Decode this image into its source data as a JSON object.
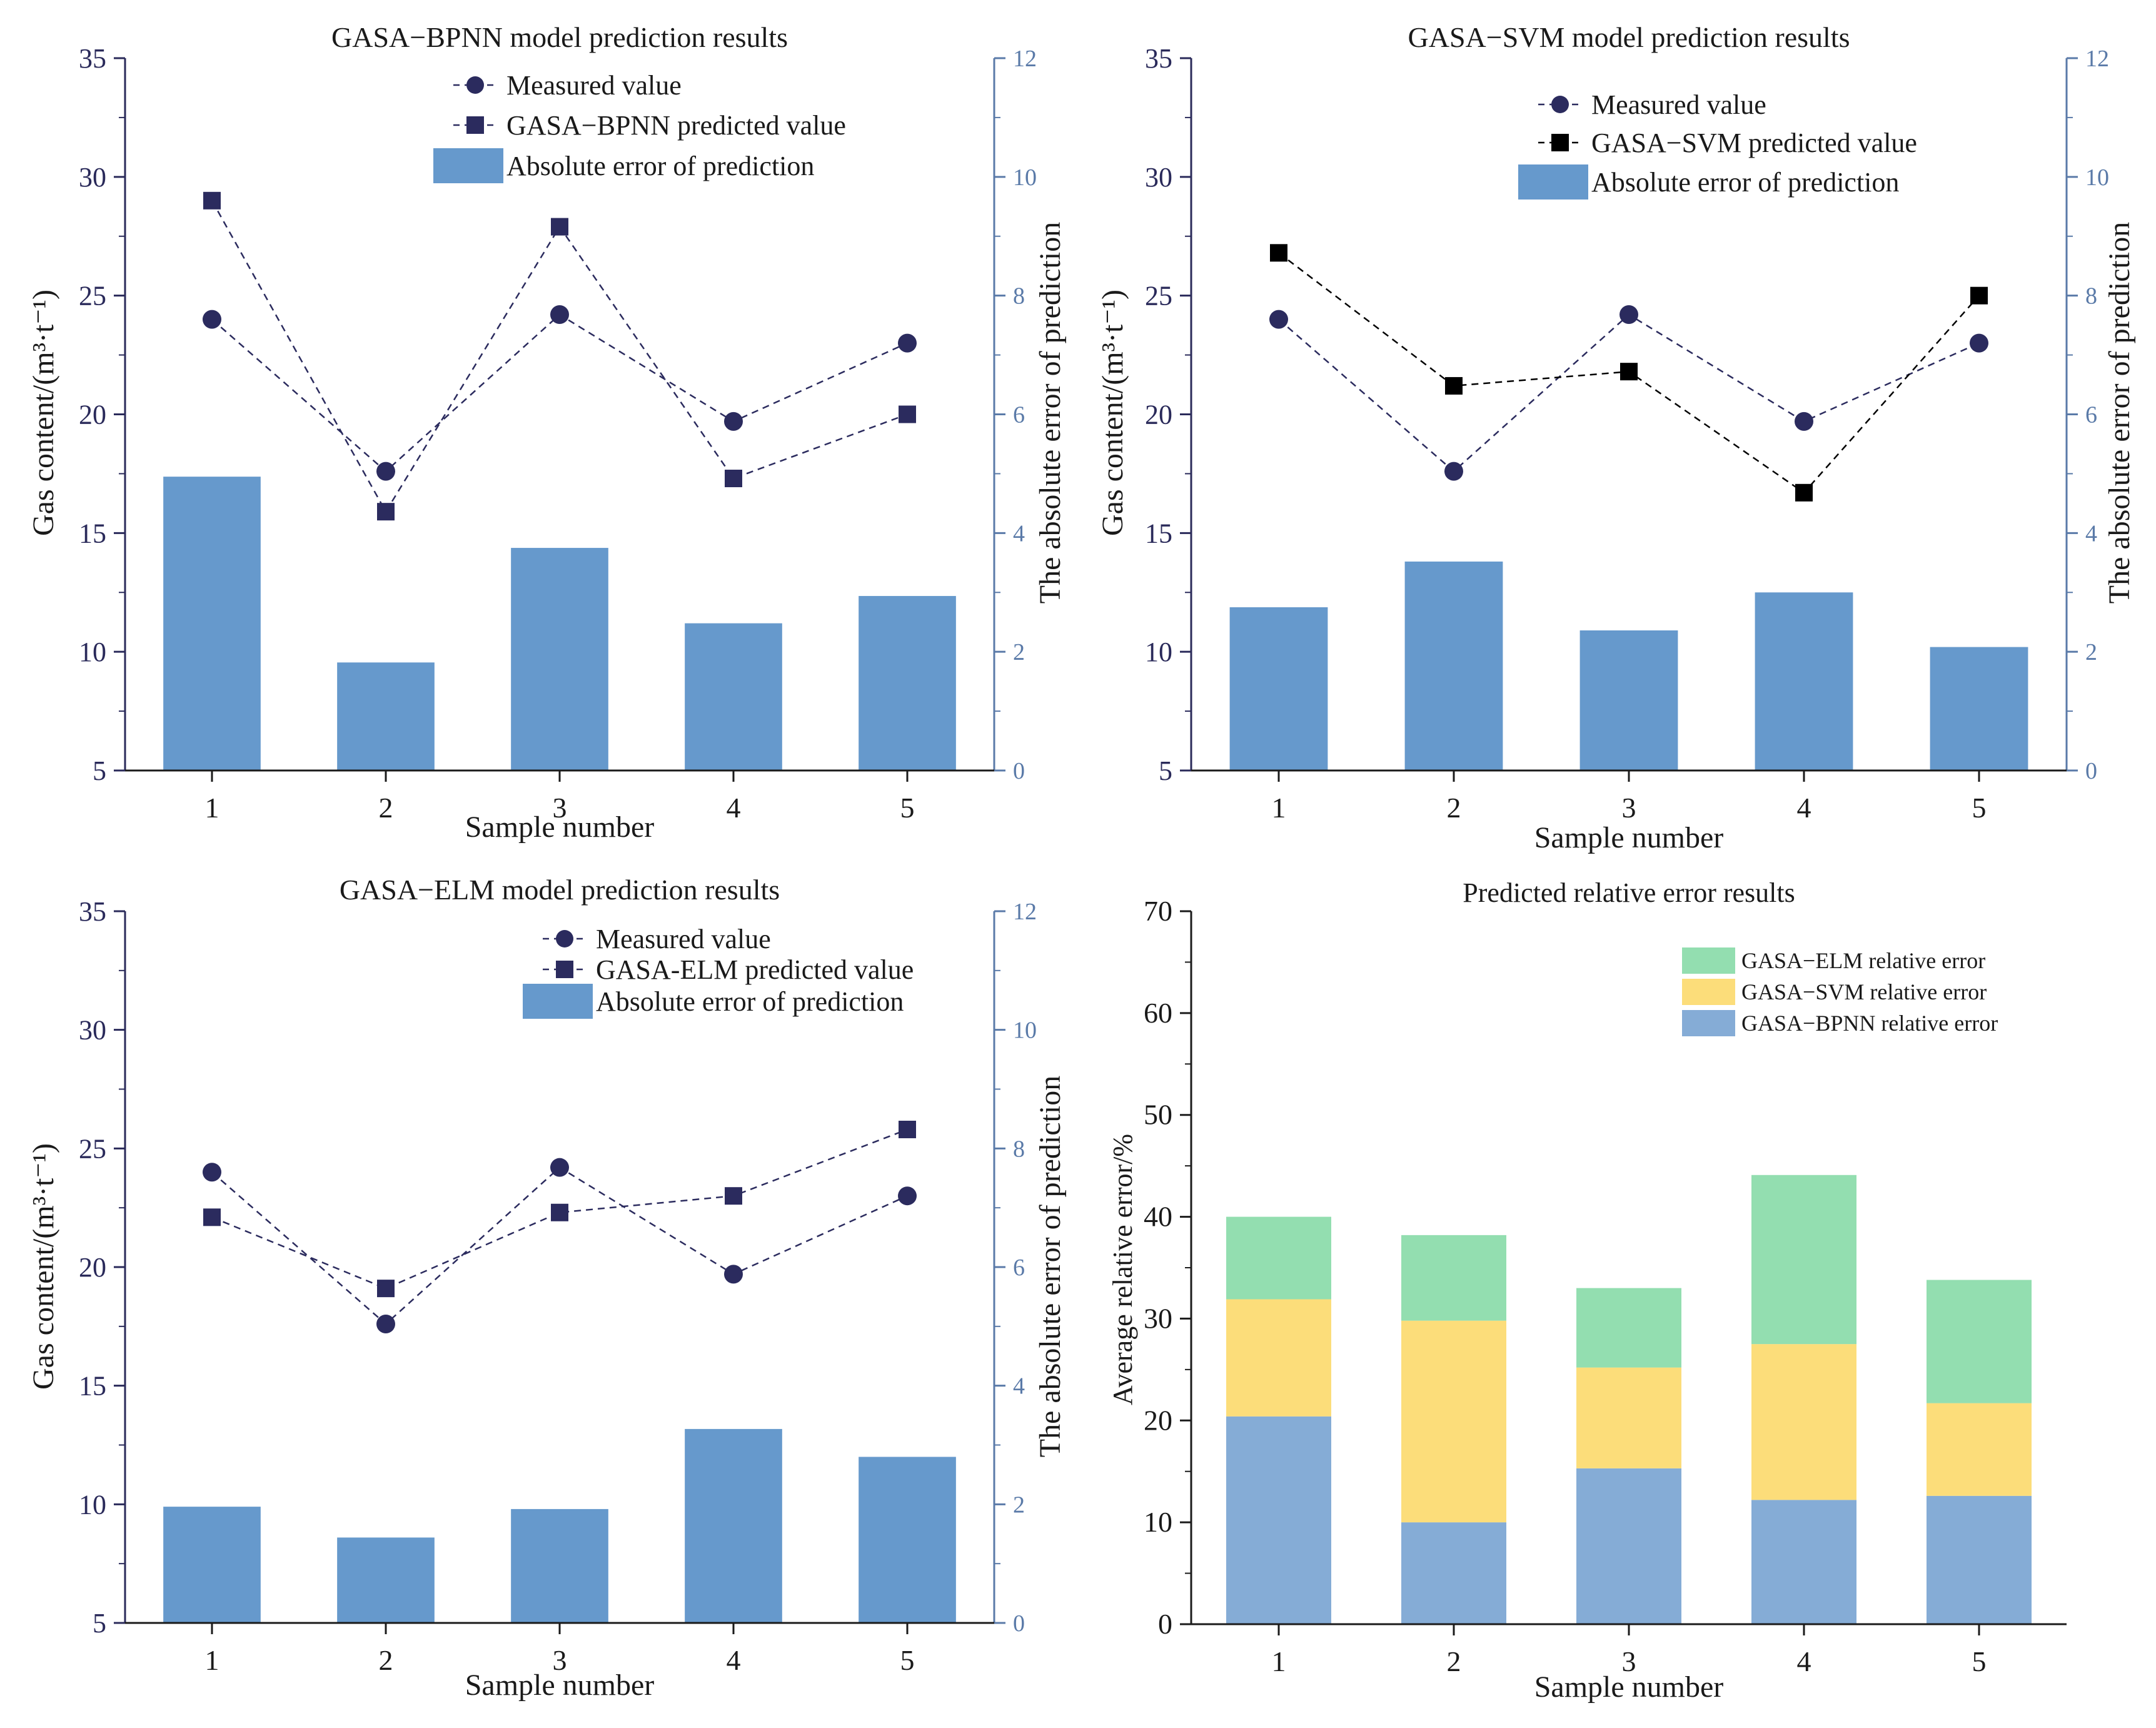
{
  "colors": {
    "bar": "#6699cc",
    "measured": "#2b2b5e",
    "bpnn_pred": "#2b2b5e",
    "svm_pred": "#000000",
    "elm_pred": "#2b2b5e",
    "stack_bpnn": "#85acd6",
    "stack_svm": "#fcdd7a",
    "stack_elm": "#93deb0",
    "axis_left": "#2a2a5a",
    "axis_right": "#5a7aa8"
  },
  "chart_data": [
    {
      "id": "bpnn",
      "type": "bar+line",
      "title": "GASA−BPNN model prediction results",
      "xlabel": "Sample number",
      "ylabel": "Gas content/(m³·t⁻¹)",
      "ylabel2": "The absolute error of prediction",
      "categories": [
        "1",
        "2",
        "3",
        "4",
        "5"
      ],
      "ylim": [
        5,
        35
      ],
      "yticks": [
        "5",
        "10",
        "15",
        "20",
        "25",
        "30",
        "35"
      ],
      "y2lim": [
        0,
        12
      ],
      "y2ticks": [
        "0",
        "2",
        "4",
        "6",
        "8",
        "10",
        "12"
      ],
      "series": [
        {
          "name": "Measured value",
          "kind": "line",
          "marker": "circle",
          "axis": "left",
          "values": [
            24.0,
            17.6,
            24.2,
            19.7,
            23.0
          ]
        },
        {
          "name": "GASA−BPNN predicted value",
          "kind": "line",
          "marker": "square",
          "axis": "left",
          "values": [
            29.0,
            15.9,
            27.9,
            17.3,
            20.0
          ]
        },
        {
          "name": "Absolute error of prediction",
          "kind": "bar",
          "axis": "right",
          "values": [
            4.95,
            1.82,
            3.75,
            2.48,
            2.94
          ]
        }
      ],
      "legend": "top-right"
    },
    {
      "id": "svm",
      "type": "bar+line",
      "title": "GASA−SVM model prediction results",
      "xlabel": "Sample number",
      "ylabel": "Gas content/(m³·t⁻¹)",
      "ylabel2": "The absolute error of prediction",
      "categories": [
        "1",
        "2",
        "3",
        "4",
        "5"
      ],
      "ylim": [
        5,
        35
      ],
      "yticks": [
        "5",
        "10",
        "15",
        "20",
        "25",
        "30",
        "35"
      ],
      "y2lim": [
        0,
        12
      ],
      "y2ticks": [
        "0",
        "2",
        "4",
        "6",
        "8",
        "10",
        "12"
      ],
      "series": [
        {
          "name": "Measured value",
          "kind": "line",
          "marker": "circle",
          "axis": "left",
          "values": [
            24.0,
            17.6,
            24.2,
            19.7,
            23.0
          ]
        },
        {
          "name": "GASA−SVM predicted value",
          "kind": "line",
          "marker": "square",
          "axis": "left",
          "values": [
            26.8,
            21.2,
            21.8,
            16.7,
            25.0
          ]
        },
        {
          "name": "Absolute error of prediction",
          "kind": "bar",
          "axis": "right",
          "values": [
            2.75,
            3.52,
            2.36,
            3.0,
            2.08
          ]
        }
      ],
      "legend": "top-right"
    },
    {
      "id": "elm",
      "type": "bar+line",
      "title": "GASA−ELM model prediction results",
      "xlabel": "Sample number",
      "ylabel": "Gas content/(m³·t⁻¹)",
      "ylabel2": "The absolute error of prediction",
      "categories": [
        "1",
        "2",
        "3",
        "4",
        "5"
      ],
      "ylim": [
        5,
        35
      ],
      "yticks": [
        "5",
        "10",
        "15",
        "20",
        "25",
        "30",
        "35"
      ],
      "y2lim": [
        0,
        12
      ],
      "y2ticks": [
        "0",
        "2",
        "4",
        "6",
        "8",
        "10",
        "12"
      ],
      "series": [
        {
          "name": "Measured value",
          "kind": "line",
          "marker": "circle",
          "axis": "left",
          "values": [
            24.0,
            17.6,
            24.2,
            19.7,
            23.0
          ]
        },
        {
          "name": "GASA-ELM predicted value",
          "kind": "line",
          "marker": "square",
          "axis": "left",
          "values": [
            22.1,
            19.1,
            22.3,
            23.0,
            25.8
          ]
        },
        {
          "name": "Absolute error of prediction",
          "kind": "bar",
          "axis": "right",
          "values": [
            1.96,
            1.44,
            1.92,
            3.27,
            2.8
          ]
        }
      ],
      "legend": "top-right"
    },
    {
      "id": "relerr",
      "type": "stacked-bar",
      "title": "Predicted relative error results",
      "xlabel": "Sample number",
      "ylabel": "Average relative error/%",
      "categories": [
        "1",
        "2",
        "3",
        "4",
        "5"
      ],
      "ylim": [
        0,
        70
      ],
      "yticks": [
        "0",
        "10",
        "20",
        "30",
        "40",
        "50",
        "60",
        "70"
      ],
      "series": [
        {
          "name": "GASA−BPNN relative error",
          "values": [
            20.4,
            10.0,
            15.3,
            12.2,
            12.6
          ]
        },
        {
          "name": "GASA−SVM relative error",
          "values": [
            11.5,
            19.8,
            9.9,
            15.3,
            9.1
          ]
        },
        {
          "name": "GASA−ELM relative error",
          "values": [
            8.1,
            8.4,
            7.8,
            16.6,
            12.1
          ]
        }
      ],
      "legend_order": [
        "GASA−ELM relative error",
        "GASA−SVM relative error",
        "GASA−BPNN relative error"
      ],
      "legend": "top-right"
    }
  ]
}
